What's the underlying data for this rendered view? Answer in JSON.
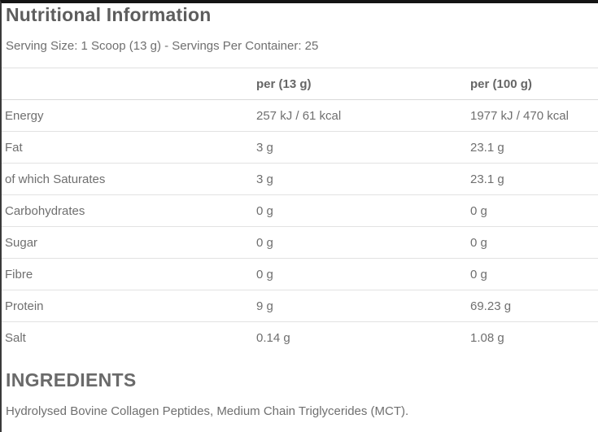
{
  "page": {
    "title": "Nutritional Information",
    "serving_info": "Serving Size: 1 Scoop (13 g) - Servings Per Container: 25"
  },
  "table": {
    "columns": [
      "",
      "per (13 g)",
      "per (100 g)"
    ],
    "rows": [
      {
        "label": "Energy",
        "per_serving": "257 kJ / 61 kcal",
        "per_100g": "1977 kJ / 470 kcal"
      },
      {
        "label": "Fat",
        "per_serving": "3 g",
        "per_100g": "23.1 g"
      },
      {
        "label": "of which Saturates",
        "per_serving": "3 g",
        "per_100g": "23.1 g"
      },
      {
        "label": "Carbohydrates",
        "per_serving": "0 g",
        "per_100g": "0 g"
      },
      {
        "label": "Sugar",
        "per_serving": "0 g",
        "per_100g": "0 g"
      },
      {
        "label": "Fibre",
        "per_serving": "0 g",
        "per_100g": "0 g"
      },
      {
        "label": "Protein",
        "per_serving": "9 g",
        "per_100g": "69.23 g"
      },
      {
        "label": "Salt",
        "per_serving": "0.14 g",
        "per_100g": "1.08 g"
      }
    ]
  },
  "ingredients": {
    "heading": "INGREDIENTS",
    "text": "Hydrolysed Bovine Collagen Peptides, Medium Chain Triglycerides (MCT)."
  },
  "colors": {
    "top_bar": "#141414",
    "left_border": "#3a3a3a",
    "title_text": "#5d5d5d",
    "body_text": "#6f6f6f",
    "divider": "#e0e0e0"
  }
}
